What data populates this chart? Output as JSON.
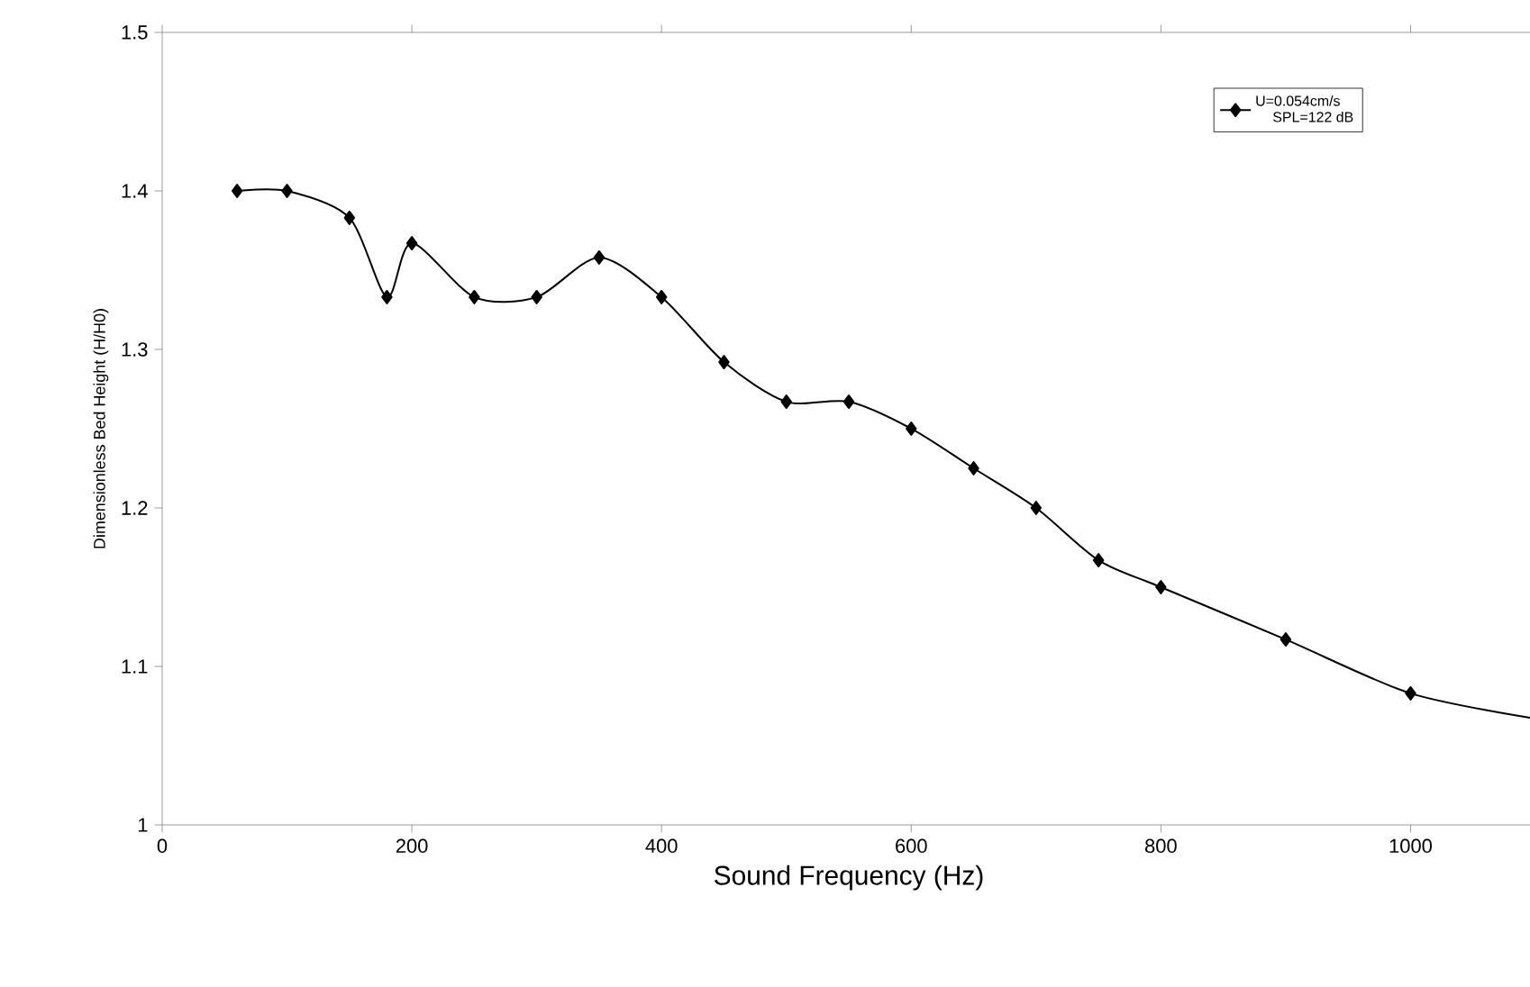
{
  "chart_data": {
    "type": "line",
    "xlabel": "Sound Frequency (Hz)",
    "ylabel": "Dimensionless Bed Height (H/H0)",
    "x": [
      60,
      100,
      150,
      180,
      200,
      250,
      300,
      350,
      400,
      450,
      500,
      550,
      600,
      650,
      700,
      750,
      800,
      900,
      1000,
      1100
    ],
    "series": [
      {
        "name": "U=0.054cm/s",
        "color": "#000000",
        "values": [
          1.4,
          1.4,
          1.383,
          1.333,
          1.367,
          1.333,
          1.333,
          1.358,
          1.333,
          1.292,
          1.267,
          1.267,
          1.25,
          1.225,
          1.2,
          1.167,
          1.15,
          1.117,
          1.083,
          1.067
        ]
      }
    ],
    "annotations": [
      "SPL=122 dB"
    ],
    "xlim": [
      0,
      1100
    ],
    "xticks": [
      0,
      200,
      400,
      600,
      800,
      1000
    ],
    "ylim": [
      1,
      1.5
    ],
    "yticks": [
      1,
      1.1,
      1.2,
      1.3,
      1.4,
      1.5
    ],
    "marker": "diamond",
    "line_style": "solid",
    "legend": "top right"
  }
}
